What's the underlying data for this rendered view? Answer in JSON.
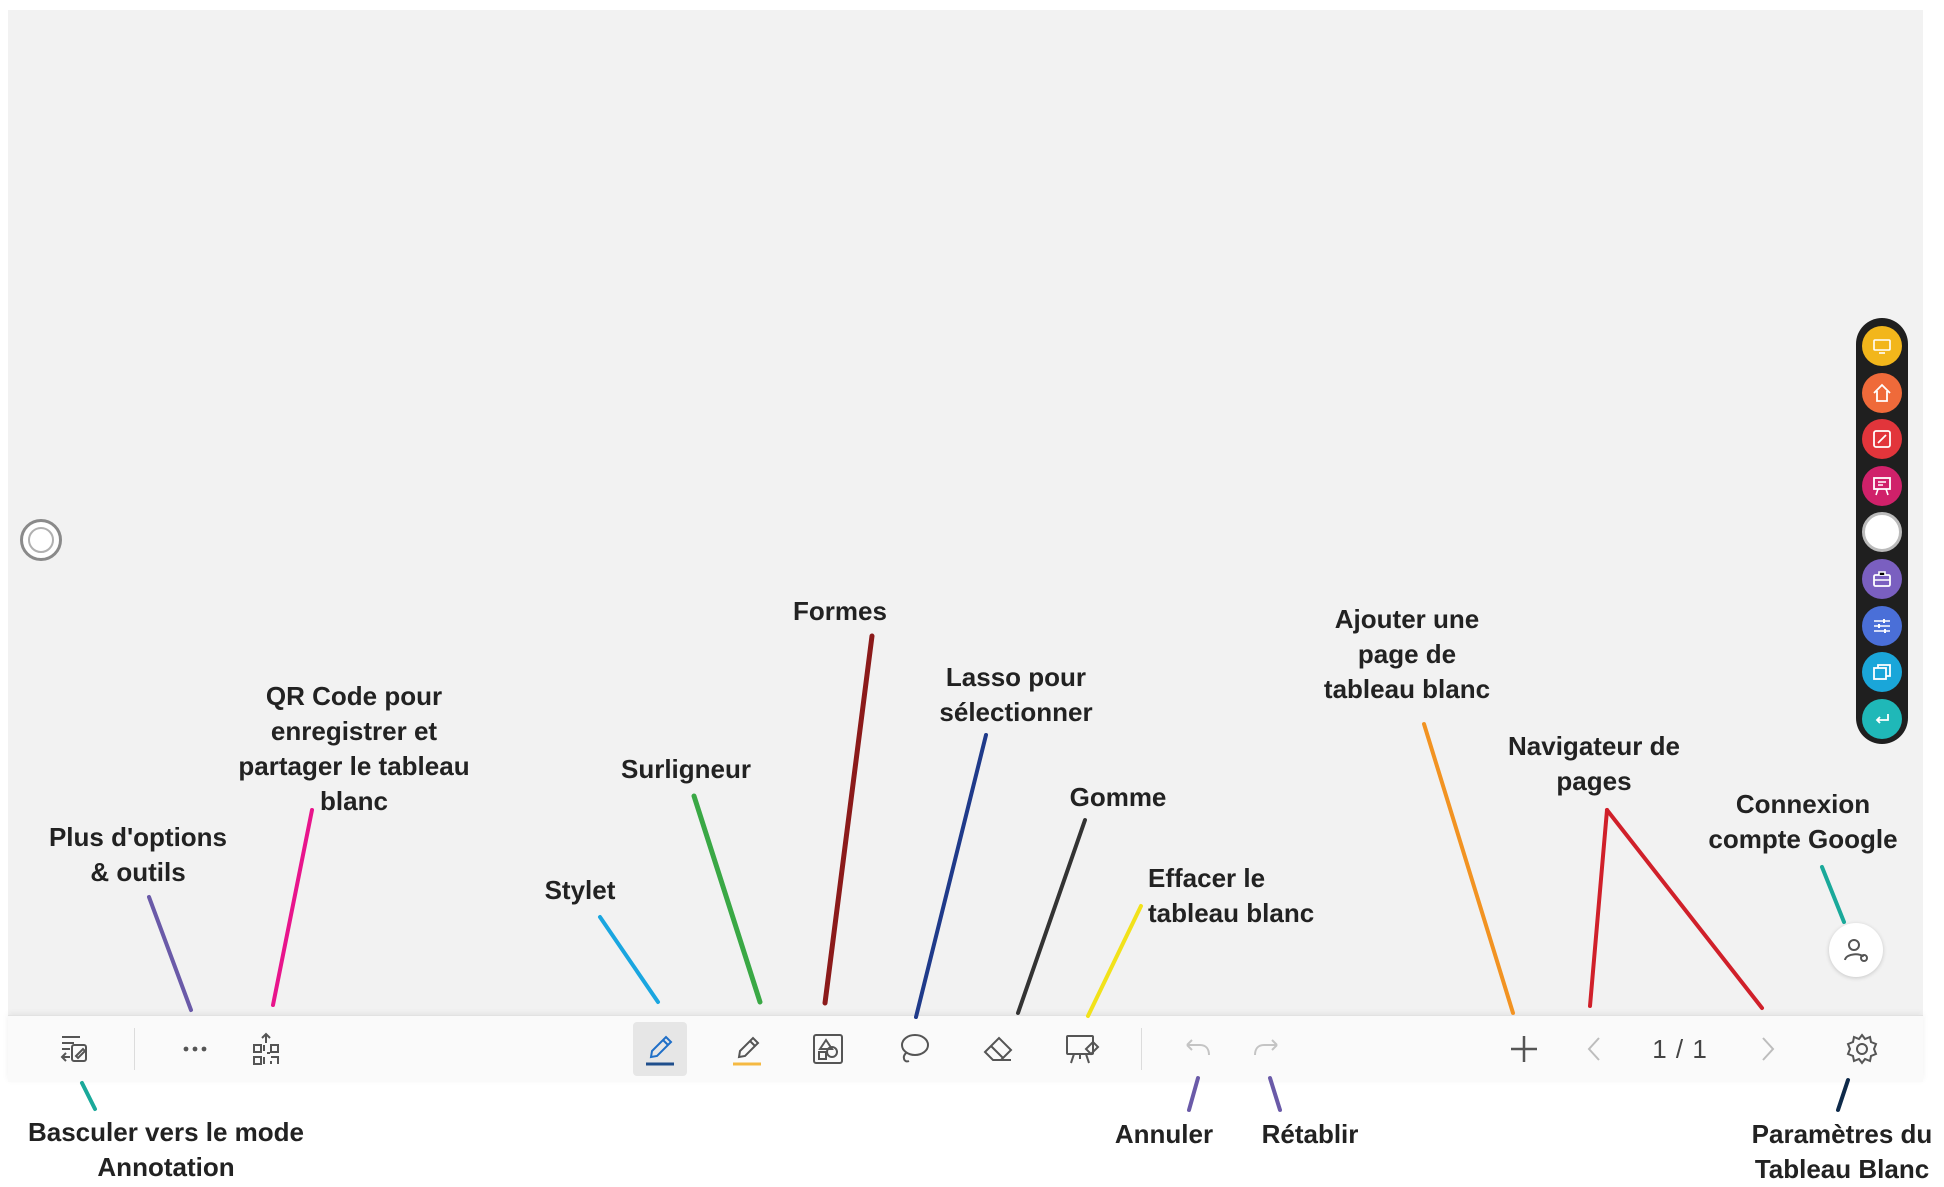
{
  "toolbar": {
    "page_indicator": "1 / 1",
    "pen_color": "#1f4e8c",
    "highlighter_color": "#f5b942"
  },
  "annotations": {
    "annotation_mode": [
      "Basculer vers le mode",
      "Annotation"
    ],
    "more_options": [
      "Plus d'options",
      "& outils"
    ],
    "qr_code": [
      "QR Code pour",
      "enregistrer et",
      "partager le tableau",
      "blanc"
    ],
    "pen": [
      "Stylet"
    ],
    "highlighter": [
      "Surligneur"
    ],
    "shapes": [
      "Formes"
    ],
    "lasso": [
      "Lasso pour",
      "sélectionner"
    ],
    "eraser": [
      "Gomme"
    ],
    "clear": [
      "Effacer le",
      "tableau blanc"
    ],
    "undo": [
      "Annuler"
    ],
    "redo": [
      "Rétablir"
    ],
    "add_page": [
      "Ajouter une",
      "page de",
      "tableau blanc"
    ],
    "page_navigator": [
      "Navigateur de",
      "pages"
    ],
    "google_login": [
      "Connexion",
      "compte Google"
    ],
    "settings": [
      "Paramètres du",
      "Tableau Blanc"
    ]
  },
  "side_bar": {
    "colors": [
      "#f2b61b",
      "#ef6a3a",
      "#e2353b",
      "#d0216a",
      "#ffffff",
      "#7a5fc0",
      "#4a6fd8",
      "#1aa6d9",
      "#1fb8b8"
    ],
    "icons": [
      "ops-icon",
      "home-icon",
      "annotate-icon",
      "whiteboard-icon",
      "touch-circle-icon",
      "toolbox-icon",
      "sliders-icon",
      "windows-icon",
      "return-icon"
    ]
  },
  "line_colors": {
    "annotation_mode": "#1aa99a",
    "more_options": "#6a5aa8",
    "qr_code": "#e8158c",
    "pen": "#1aa6e0",
    "highlighter": "#3aa845",
    "shapes": "#8b1a1a",
    "lasso": "#1f3a8a",
    "eraser": "#333333",
    "clear": "#f2e21a",
    "undo": "#6a5aa8",
    "redo": "#6a5aa8",
    "add_page": "#f29322",
    "page_navigator": "#d0202a",
    "google_login": "#1aa99a",
    "settings": "#0e2a4a"
  }
}
